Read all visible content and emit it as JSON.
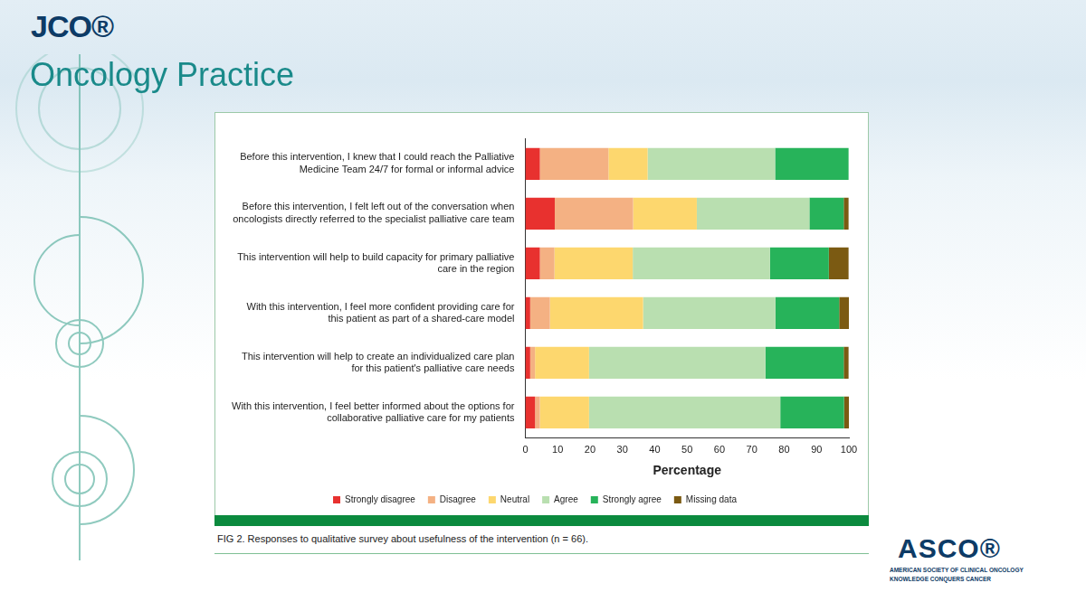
{
  "page": {
    "journal": "JCO®",
    "journal_subtitle": "Oncology Practice",
    "publisher": "ASCO®",
    "publisher_name": "AMERICAN SOCIETY OF CLINICAL ONCOLOGY",
    "publisher_tagline": "KNOWLEDGE CONQUERS CANCER"
  },
  "chart_data": {
    "type": "bar",
    "orientation": "horizontal",
    "stacked": true,
    "title": "FIG 2. Responses to qualitative survey about usefulness of the intervention (n = 66).",
    "x_label": "Percentage",
    "categories": [
      "Before this intervention, I knew that I could reach the Palliative Medicine Team 24/7 for formal or informal advice",
      "Before this intervention, I felt left out of the conversation when oncologists directly referred to the specialist palliative care team",
      "This intervention will help to build capacity for primary palliative care in the region",
      "With this intervention, I feel more confident providing care for this patient as part of a shared-care model",
      "This intervention will help to create an individualized care plan for this patient's palliative care needs",
      "With this intervention, I feel better informed about the options for collaborative palliative care for my patients"
    ],
    "series": [
      {
        "name": "Strongly disagree",
        "color": "#e8312f",
        "values": [
          4.5,
          9.1,
          4.5,
          1.5,
          1.5,
          3.0
        ]
      },
      {
        "name": "Disagree",
        "color": "#f4b183",
        "values": [
          21.2,
          24.2,
          4.5,
          6.1,
          1.5,
          1.5
        ]
      },
      {
        "name": "Neutral",
        "color": "#fdd76e",
        "values": [
          12.1,
          19.7,
          24.2,
          28.8,
          16.7,
          15.2
        ]
      },
      {
        "name": "Agree",
        "color": "#b9dfb0",
        "values": [
          39.4,
          34.8,
          42.4,
          40.9,
          54.5,
          59.1
        ]
      },
      {
        "name": "Strongly agree",
        "color": "#27b35a",
        "values": [
          22.7,
          10.6,
          18.2,
          19.7,
          24.2,
          19.7
        ]
      },
      {
        "name": "Missing data",
        "color": "#7b5a12",
        "values": [
          0,
          1.5,
          6.1,
          3.0,
          1.5,
          1.5
        ]
      }
    ],
    "xlim": [
      0,
      100
    ],
    "xticks": [
      0,
      10,
      20,
      30,
      40,
      50,
      60,
      70,
      80,
      90,
      100
    ],
    "grid": false,
    "legend": "bottom"
  }
}
